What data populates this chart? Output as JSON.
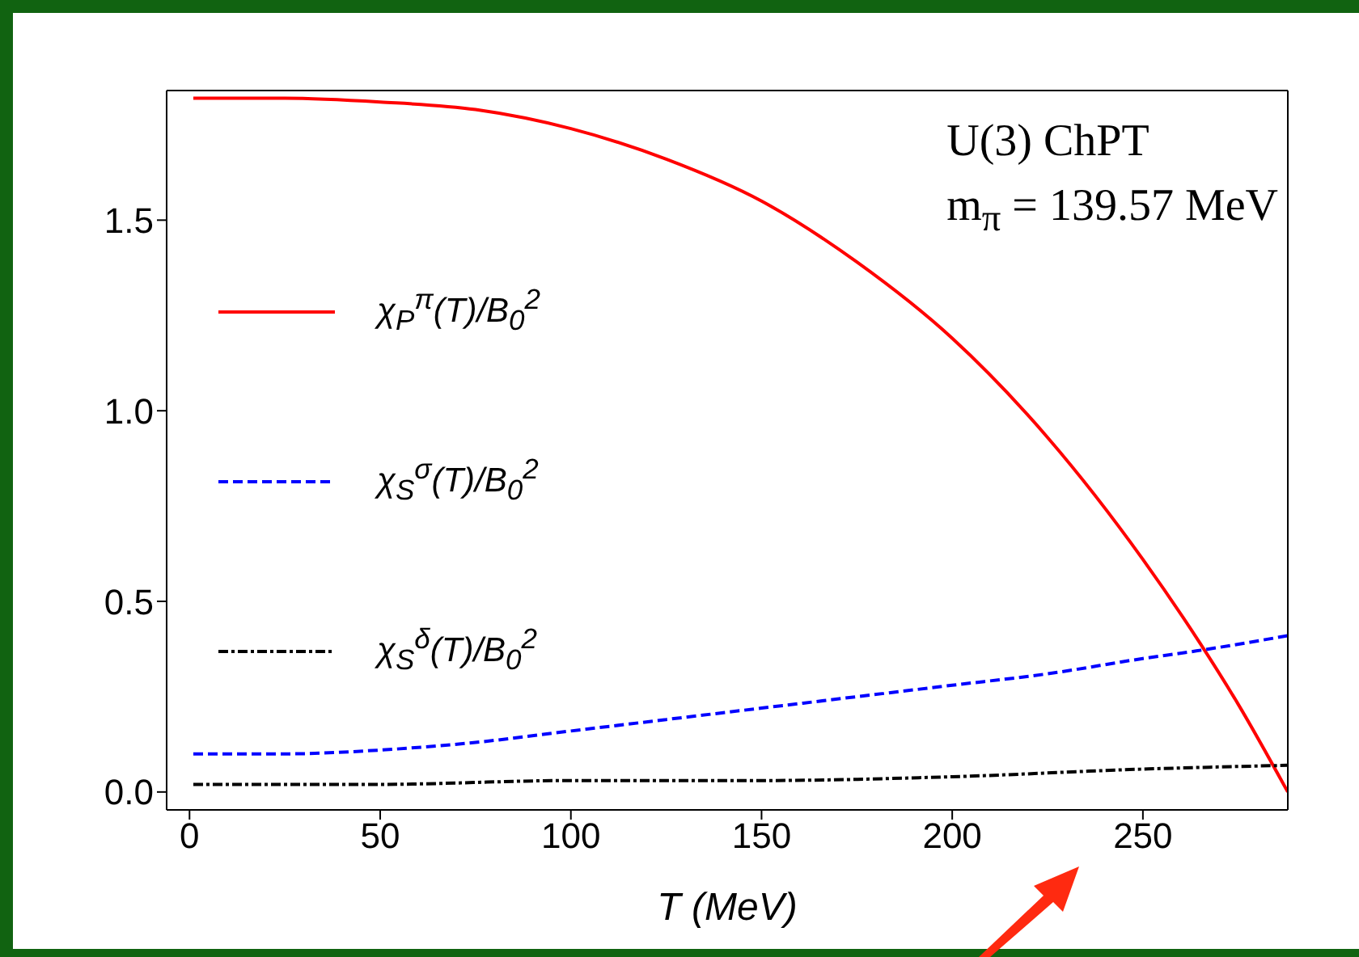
{
  "chart_data": {
    "type": "line",
    "xlabel": "T (MeV)",
    "xlim": [
      -6,
      288
    ],
    "xticks": [
      0,
      50,
      100,
      150,
      200,
      250
    ],
    "ylim": [
      -0.047,
      1.84
    ],
    "yticks": [
      {
        "value": 0,
        "label": "0.0"
      },
      {
        "value": 0.5,
        "label": "0.5"
      },
      {
        "value": 1,
        "label": "1.0"
      },
      {
        "value": 1.5,
        "label": "1.5"
      }
    ],
    "legend": "left",
    "marker": "none",
    "annotations": [
      "U(3) ChPT",
      "m$_{π}$ = 139.57 MeV"
    ],
    "series": [
      {
        "name": "χ$_{P}$$^{π}$(T)/B$_{0}$$^{2}$",
        "color": "#ff0000",
        "line_style": "solid",
        "x": [
          1,
          25,
          50,
          75,
          100,
          125,
          150,
          175,
          200,
          225,
          250,
          265,
          275,
          288
        ],
        "values": [
          1.82,
          1.82,
          1.81,
          1.79,
          1.74,
          1.66,
          1.55,
          1.39,
          1.19,
          0.93,
          0.61,
          0.39,
          0.23,
          0
        ]
      },
      {
        "name": "χ$_{S}$$^{σ}$(T)/B$_{0}$$^{2}$",
        "color": "#0000ff",
        "line_style": "dashed",
        "x": [
          1,
          25,
          50,
          75,
          100,
          125,
          150,
          175,
          200,
          225,
          250,
          264,
          288
        ],
        "values": [
          0.1,
          0.1,
          0.11,
          0.13,
          0.16,
          0.19,
          0.22,
          0.25,
          0.28,
          0.31,
          0.35,
          0.37,
          0.41
        ]
      },
      {
        "name": "χ$_{S}$$^{δ}$(T)/B$_{0}$$^{2}$",
        "color": "#000000",
        "line_style": "dashdot",
        "x": [
          1,
          50,
          100,
          150,
          200,
          250,
          288
        ],
        "values": [
          0.02,
          0.02,
          0.03,
          0.03,
          0.04,
          0.06,
          0.07
        ]
      }
    ]
  }
}
